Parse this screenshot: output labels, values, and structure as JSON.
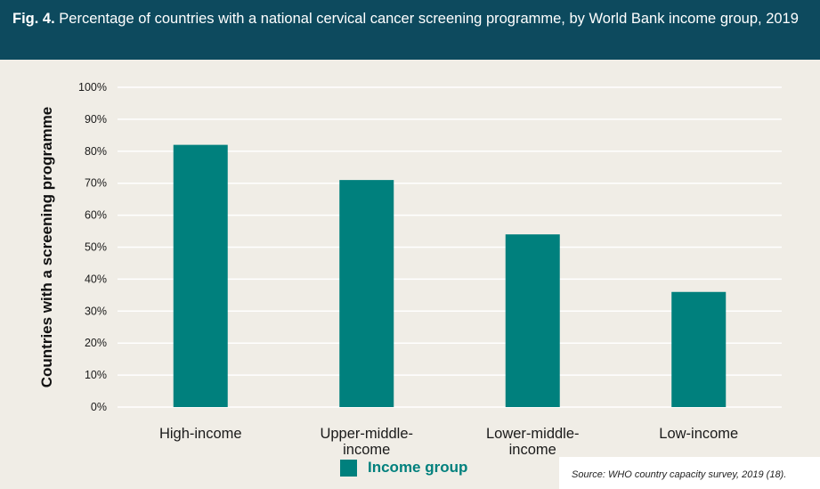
{
  "header": {
    "fig_label": "Fig. 4.",
    "title": "Percentage of countries with a national cervical cancer screening programme, by World Bank income group, 2019"
  },
  "chart_data": {
    "type": "bar",
    "categories": [
      "High-income",
      "Upper-middle-income",
      "Lower-middle-income",
      "Low-income"
    ],
    "category_lines": [
      [
        "High-income"
      ],
      [
        "Upper-middle-",
        "income"
      ],
      [
        "Lower-middle-",
        "income"
      ],
      [
        "Low-income"
      ]
    ],
    "values": [
      82,
      71,
      54,
      36
    ],
    "ylabel": "Countries with a screening programme",
    "ylim": [
      0,
      100
    ],
    "y_ticks": [
      0,
      10,
      20,
      30,
      40,
      50,
      60,
      70,
      80,
      90,
      100
    ],
    "y_tick_labels": [
      "0%",
      "10%",
      "20%",
      "30%",
      "40%",
      "50%",
      "60%",
      "70%",
      "80%",
      "90%",
      "100%"
    ],
    "grid": true,
    "legend_label": "Income group",
    "legend_position": "bottom-center",
    "bar_color": "#00807d",
    "grid_color": "#ffffff"
  },
  "source": "Source: WHO country capacity survey, 2019 (18)."
}
